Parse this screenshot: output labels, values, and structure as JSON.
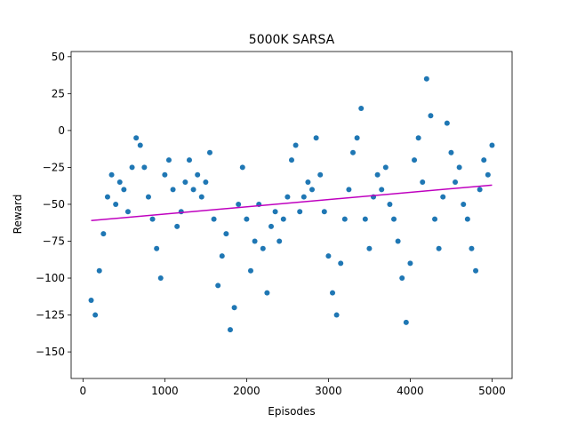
{
  "chart_data": {
    "type": "scatter",
    "title": "5000K SARSA",
    "xlabel": "Episodes",
    "ylabel": "Reward",
    "xlim": [
      -145,
      5245
    ],
    "ylim": [
      -168,
      53.5
    ],
    "xticks": [
      0,
      1000,
      2000,
      3000,
      4000,
      5000
    ],
    "yticks": [
      {
        "value": -150,
        "label": "−150"
      },
      {
        "value": -125,
        "label": "−125"
      },
      {
        "value": -100,
        "label": "−100"
      },
      {
        "value": -75,
        "label": "−75"
      },
      {
        "value": -50,
        "label": "−50"
      },
      {
        "value": -25,
        "label": "−25"
      },
      0,
      25,
      50
    ],
    "series": [
      {
        "type": "scatter",
        "color": "#1f77b4",
        "x": [
          100,
          150,
          200,
          250,
          300,
          350,
          400,
          450,
          500,
          550,
          600,
          650,
          700,
          750,
          800,
          850,
          900,
          950,
          1000,
          1050,
          1100,
          1150,
          1200,
          1250,
          1300,
          1350,
          1400,
          1450,
          1500,
          1550,
          1600,
          1650,
          1700,
          1750,
          1800,
          1850,
          1900,
          1950,
          2000,
          2050,
          2100,
          2150,
          2200,
          2250,
          2300,
          2350,
          2400,
          2450,
          2500,
          2550,
          2600,
          2650,
          2700,
          2750,
          2800,
          2850,
          2900,
          2950,
          3000,
          3050,
          3100,
          3150,
          3200,
          3250,
          3300,
          3350,
          3400,
          3450,
          3500,
          3550,
          3600,
          3650,
          3700,
          3750,
          3800,
          3850,
          3900,
          3950,
          4000,
          4050,
          4100,
          4150,
          4200,
          4250,
          4300,
          4350,
          4400,
          4450,
          4500,
          4550,
          4600,
          4650,
          4700,
          4750,
          4800,
          4850,
          4900,
          4950,
          5000
        ],
        "values": [
          -115,
          -125,
          -95,
          -70,
          -45,
          -30,
          -50,
          -35,
          -40,
          -55,
          -25,
          -5,
          -10,
          -25,
          -45,
          -60,
          -80,
          -100,
          -30,
          -20,
          -40,
          -65,
          -55,
          -35,
          -20,
          -40,
          -30,
          -45,
          -35,
          -15,
          -60,
          -105,
          -85,
          -70,
          -135,
          -120,
          -50,
          -25,
          -60,
          -95,
          -75,
          -50,
          -80,
          -110,
          -65,
          -55,
          -75,
          -60,
          -45,
          -20,
          -10,
          -55,
          -45,
          -35,
          -40,
          -5,
          -30,
          -55,
          -85,
          -110,
          -125,
          -90,
          -60,
          -40,
          -15,
          -5,
          15,
          -60,
          -80,
          -45,
          -30,
          -40,
          -25,
          -50,
          -60,
          -75,
          -100,
          -130,
          -90,
          -20,
          -5,
          -35,
          35,
          10,
          -60,
          -80,
          -45,
          5,
          -15,
          -35,
          -25,
          -50,
          -60,
          -80,
          -95,
          -40,
          -20,
          -30,
          -10
        ]
      },
      {
        "type": "line",
        "color": "#bf00bf",
        "x": [
          100,
          5000
        ],
        "values": [
          -61,
          -37
        ]
      }
    ]
  }
}
